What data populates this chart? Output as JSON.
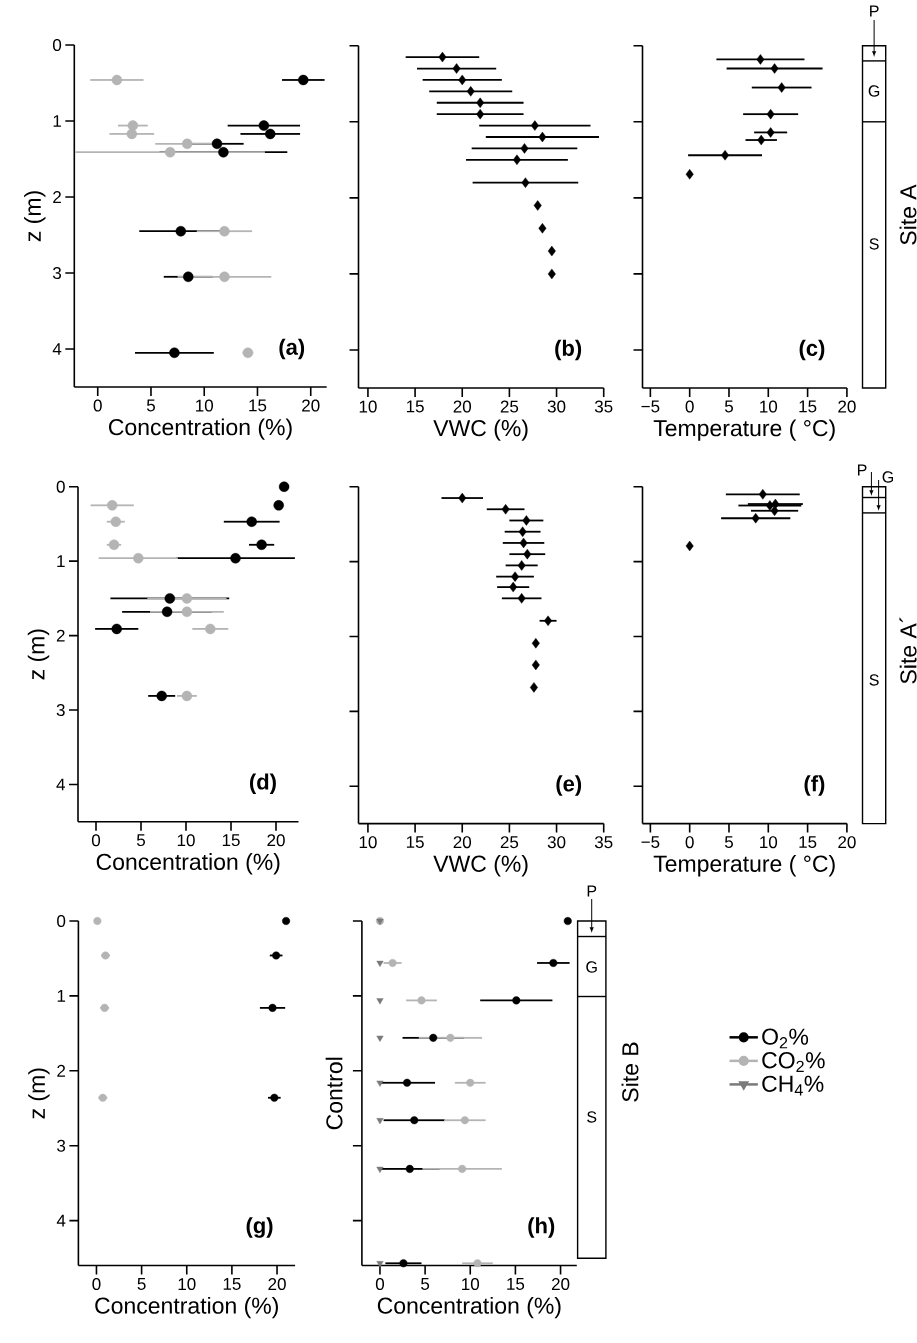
{
  "chart_data": [
    {
      "type": "scatter",
      "xlabel": "Concentration (%)",
      "ylabel": "z (m)",
      "annotations": [
        "(a)"
      ],
      "xlim": [
        -2.2,
        21.5
      ],
      "ylim": [
        4.5,
        0
      ],
      "xticks": [
        0,
        5,
        10,
        15,
        20
      ],
      "yticks": [
        0,
        1,
        2,
        3,
        4
      ],
      "series": [
        {
          "color": "#000000",
          "marker": "circle",
          "x": [
            19.3,
            15.6,
            16.2,
            11.2,
            11.8,
            7.8,
            8.5,
            7.2
          ],
          "values": [
            0.46,
            1.06,
            1.17,
            1.3,
            1.41,
            2.45,
            3.05,
            4.05
          ],
          "xerrors": [
            2.0,
            3.4,
            2.8,
            2.5,
            6.0,
            3.9,
            2.3,
            3.7
          ]
        },
        {
          "color": "#b4b4b4",
          "marker": "circle",
          "x": [
            1.8,
            3.3,
            3.2,
            8.4,
            6.8,
            11.9,
            11.9,
            14.1
          ],
          "values": [
            0.46,
            1.06,
            1.17,
            1.3,
            1.41,
            2.45,
            3.05,
            4.05
          ],
          "xerrors": [
            2.5,
            1.4,
            2.1,
            3.0,
            8.9,
            2.6,
            4.4,
            0.5
          ]
        }
      ]
    },
    {
      "type": "scatter",
      "marker": "diamond",
      "xlabel": "VWC (%)",
      "annotations": [
        "(b)"
      ],
      "xlim": [
        9,
        35
      ],
      "ylim": [
        4.5,
        0
      ],
      "xticks": [
        10,
        15,
        20,
        25,
        30,
        35
      ],
      "yticks": [
        0,
        1,
        2,
        3,
        4
      ],
      "tick_labels": "x",
      "series": [
        {
          "color": "#000000",
          "x": [
            17.9,
            19.4,
            20.0,
            20.9,
            21.9,
            21.9,
            27.7,
            28.5,
            26.6,
            25.8,
            26.7,
            28.0,
            28.5,
            29.5,
            29.5
          ],
          "values": [
            0.15,
            0.3,
            0.45,
            0.6,
            0.75,
            0.9,
            1.05,
            1.2,
            1.35,
            1.5,
            1.8,
            2.1,
            2.4,
            2.7,
            3.0
          ],
          "xerrors": [
            3.9,
            4.2,
            4.2,
            4.4,
            4.6,
            4.6,
            5.9,
            6.0,
            5.6,
            5.4,
            5.6,
            null,
            null,
            null,
            null
          ]
        }
      ]
    },
    {
      "type": "scatter",
      "marker": "diamond",
      "xlabel": "Temperature ( °C)",
      "annotations": [
        "(c)",
        "P",
        "G",
        "S",
        "Site A"
      ],
      "xlim": [
        -6,
        20
      ],
      "ylim": [
        4.5,
        0
      ],
      "xticks": [
        {
          "value": -5,
          "label": "−5"
        },
        0,
        5,
        10,
        15,
        20
      ],
      "yticks": [
        0,
        1,
        2,
        3,
        4
      ],
      "tick_labels": "x",
      "series": [
        {
          "color": "#000000",
          "x": [
            9.0,
            10.8,
            11.7,
            10.3,
            10.3,
            9.1,
            4.5,
            0.0
          ],
          "values": [
            0.18,
            0.3,
            0.55,
            0.9,
            1.14,
            1.24,
            1.44,
            1.69
          ],
          "xerrors": [
            5.6,
            6.1,
            3.8,
            3.5,
            2.1,
            2.0,
            4.7,
            null
          ]
        }
      ]
    },
    {
      "type": "scatter",
      "xlabel": "Concentration (%)",
      "ylabel": "z (m)",
      "annotations": [
        "(d)"
      ],
      "xlim": [
        -2,
        22.5
      ],
      "ylim": [
        4.5,
        0
      ],
      "xticks": [
        0,
        5,
        10,
        15,
        20
      ],
      "yticks": [
        0,
        1,
        2,
        3,
        4
      ],
      "series": [
        {
          "color": "#000000",
          "marker": "circle",
          "x": [
            20.9,
            20.3,
            17.3,
            18.4,
            15.5,
            8.2,
            7.9,
            2.3,
            7.3
          ],
          "values": [
            0.0,
            0.25,
            0.47,
            0.78,
            0.96,
            1.5,
            1.68,
            1.91,
            2.81
          ],
          "xerrors": [
            null,
            null,
            3.1,
            1.4,
            6.6,
            6.6,
            5.0,
            2.4,
            1.5
          ]
        },
        {
          "color": "#b4b4b4",
          "marker": "circle",
          "x": [
            1.8,
            2.2,
            2.0,
            4.7,
            10.1,
            10.1,
            12.7,
            10.1
          ],
          "values": [
            0.25,
            0.47,
            0.78,
            0.96,
            1.5,
            1.68,
            1.91,
            2.81
          ],
          "xerrors": [
            2.4,
            1.0,
            0.8,
            4.4,
            4.4,
            4.1,
            2.0,
            1.1
          ]
        }
      ]
    },
    {
      "type": "scatter",
      "marker": "diamond",
      "xlabel": "VWC (%)",
      "annotations": [
        "(e)"
      ],
      "xlim": [
        9,
        35
      ],
      "ylim": [
        4.5,
        0
      ],
      "xticks": [
        10,
        15,
        20,
        25,
        30,
        35
      ],
      "yticks": [
        0,
        1,
        2,
        3,
        4
      ],
      "tick_labels": "x",
      "series": [
        {
          "color": "#000000",
          "x": [
            20.0,
            24.6,
            26.8,
            26.4,
            26.5,
            26.9,
            26.3,
            25.6,
            25.4,
            26.3,
            29.1,
            27.8,
            27.8,
            27.6
          ],
          "values": [
            0.15,
            0.3,
            0.45,
            0.6,
            0.75,
            0.9,
            1.05,
            1.2,
            1.34,
            1.49,
            1.79,
            2.09,
            2.38,
            2.68
          ],
          "xerrors": [
            2.2,
            2.0,
            1.8,
            1.9,
            2.2,
            1.9,
            1.7,
            2.0,
            1.7,
            2.1,
            0.9,
            null,
            null,
            null
          ]
        }
      ]
    },
    {
      "type": "scatter",
      "marker": "diamond",
      "xlabel": "Temperature ( °C)",
      "annotations": [
        "(f)",
        "P",
        "G",
        "S",
        "Site A´"
      ],
      "xlim": [
        -6,
        20
      ],
      "ylim": [
        4.5,
        0
      ],
      "xticks": [
        {
          "value": -5,
          "label": "−5"
        },
        0,
        5,
        10,
        15,
        20
      ],
      "yticks": [
        0,
        1,
        2,
        3,
        4
      ],
      "tick_labels": "x",
      "series": [
        {
          "color": "#000000",
          "x": [
            9.3,
            10.9,
            10.2,
            10.8,
            8.4,
            0.0
          ],
          "values": [
            0.1,
            0.23,
            0.25,
            0.32,
            0.42,
            0.79
          ],
          "xerrors": [
            4.7,
            3.5,
            4.0,
            3.0,
            4.4,
            null
          ]
        }
      ]
    },
    {
      "type": "scatter",
      "xlabel": "Concentration (%)",
      "ylabel": "z (m)",
      "annotations": [
        "(g)"
      ],
      "xlim": [
        -2,
        22
      ],
      "ylim": [
        4.6,
        0
      ],
      "xticks": [
        0,
        5,
        10,
        15,
        20
      ],
      "yticks": [
        0,
        1,
        2,
        3,
        4
      ],
      "series": [
        {
          "color": "#000000",
          "marker": "circle",
          "x": [
            21.0,
            19.9,
            19.5,
            19.7
          ],
          "values": [
            0.0,
            0.46,
            1.16,
            2.36
          ],
          "xerrors": [
            null,
            0.7,
            1.4,
            0.7
          ]
        },
        {
          "color": "#b4b4b4",
          "marker": "circle",
          "x": [
            0.1,
            1.0,
            0.9,
            0.7
          ],
          "values": [
            0.0,
            0.46,
            1.16,
            2.36
          ],
          "xerrors": [
            null,
            0.5,
            0.5,
            0.5
          ]
        }
      ]
    },
    {
      "type": "scatter",
      "xlabel": "Concentration (%)",
      "ylabel": "Control",
      "annotations": [
        "(h)",
        "P",
        "G",
        "S",
        "Site B"
      ],
      "xlim": [
        -2,
        21.8
      ],
      "ylim": [
        4.6,
        0
      ],
      "xticks": [
        0,
        5,
        10,
        15,
        20
      ],
      "yticks": [
        0,
        1,
        2,
        3,
        4
      ],
      "tick_labels": "x",
      "legend": "right",
      "series": [
        {
          "name": "O$_{2}$%",
          "color": "#000000",
          "marker": "circle",
          "x": [
            20.8,
            19.2,
            15.1,
            5.9,
            3.0,
            3.8,
            3.3,
            2.6
          ],
          "values": [
            0.0,
            0.56,
            1.06,
            1.56,
            2.16,
            2.66,
            3.31,
            4.57
          ],
          "xerrors": [
            null,
            1.8,
            4.0,
            3.4,
            3.1,
            3.4,
            3.3,
            2.0
          ]
        },
        {
          "name": "CO$_{2}$%",
          "color": "#b4b4b4",
          "marker": "circle",
          "x": [
            0.0,
            1.4,
            4.6,
            7.8,
            10.0,
            9.4,
            9.1,
            10.8
          ],
          "values": [
            0.0,
            0.56,
            1.06,
            1.56,
            2.16,
            2.66,
            3.31,
            4.57
          ],
          "xerrors": [
            null,
            1.0,
            1.7,
            3.5,
            1.7,
            2.3,
            4.4,
            1.7
          ]
        },
        {
          "name": "CH$_{4}$%",
          "color": "#7a7a7a",
          "marker": "triangle",
          "x": [
            0,
            0,
            0,
            0,
            0,
            0,
            0,
            0
          ],
          "values": [
            0.0,
            0.56,
            1.06,
            1.56,
            2.16,
            2.66,
            3.31,
            4.57
          ]
        }
      ]
    }
  ]
}
